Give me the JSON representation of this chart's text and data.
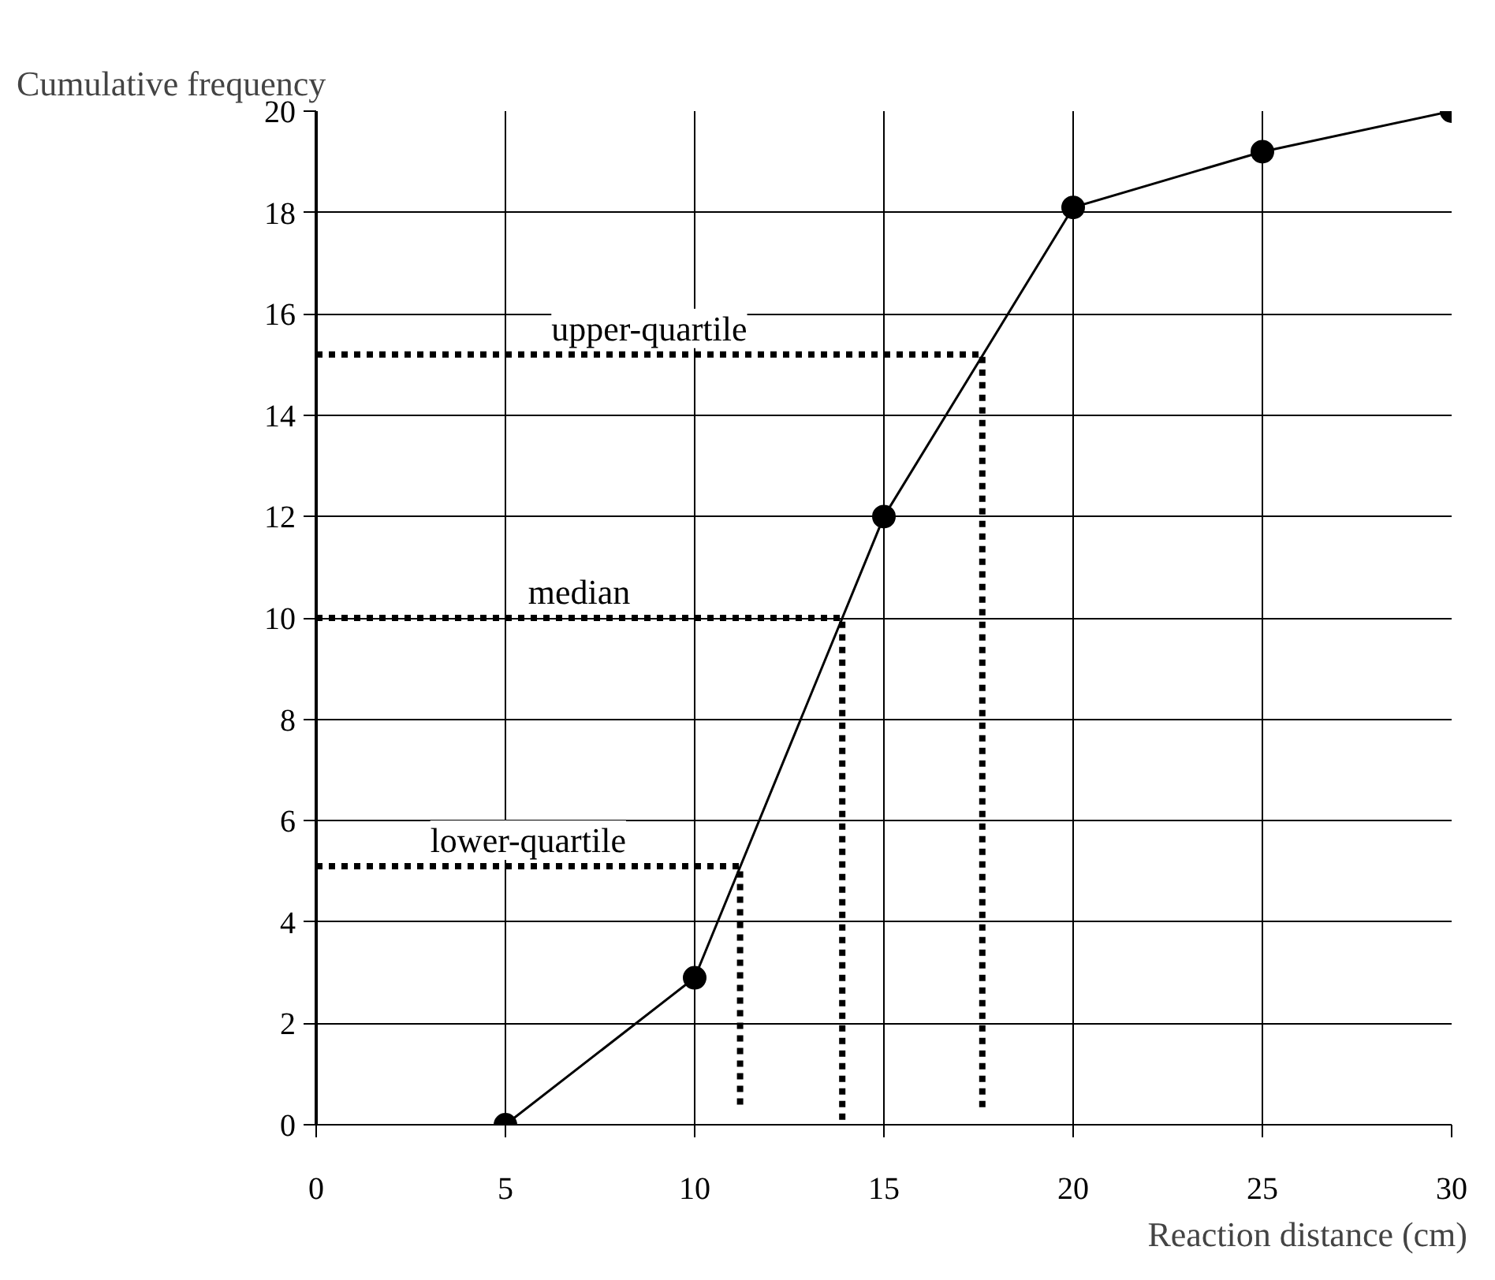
{
  "chart_data": {
    "type": "line",
    "xlabel": "Reaction distance (cm)",
    "ylabel": "Cumulative frequency",
    "xlim": [
      0,
      30
    ],
    "ylim": [
      0,
      20
    ],
    "xticks": [
      0,
      5,
      10,
      15,
      20,
      25,
      30
    ],
    "yticks": [
      0,
      2,
      4,
      6,
      8,
      10,
      12,
      14,
      16,
      18,
      20
    ],
    "grid": true,
    "series": [
      {
        "color": "#000000",
        "x": [
          5,
          10,
          15,
          20,
          25,
          30
        ],
        "values": [
          0,
          2.9,
          12,
          18.1,
          19.2,
          20
        ],
        "marker": "circle",
        "line_style": "solid"
      },
      {
        "color": "#000000",
        "x": [
          0,
          17.6,
          17.6
        ],
        "values": [
          15.2,
          15.2,
          0.3
        ],
        "marker": "none",
        "line_style": "dotted"
      },
      {
        "color": "#000000",
        "x": [
          0,
          13.9,
          13.9
        ],
        "values": [
          10,
          10,
          0
        ],
        "marker": "none",
        "line_style": "dotted"
      },
      {
        "color": "#000000",
        "x": [
          0,
          11.2,
          11.2
        ],
        "values": [
          5.1,
          5.1,
          0.3
        ],
        "marker": "none",
        "line_style": "dotted"
      }
    ],
    "annotations": [
      "upper-quartile",
      "median",
      "lower-quartile"
    ]
  }
}
